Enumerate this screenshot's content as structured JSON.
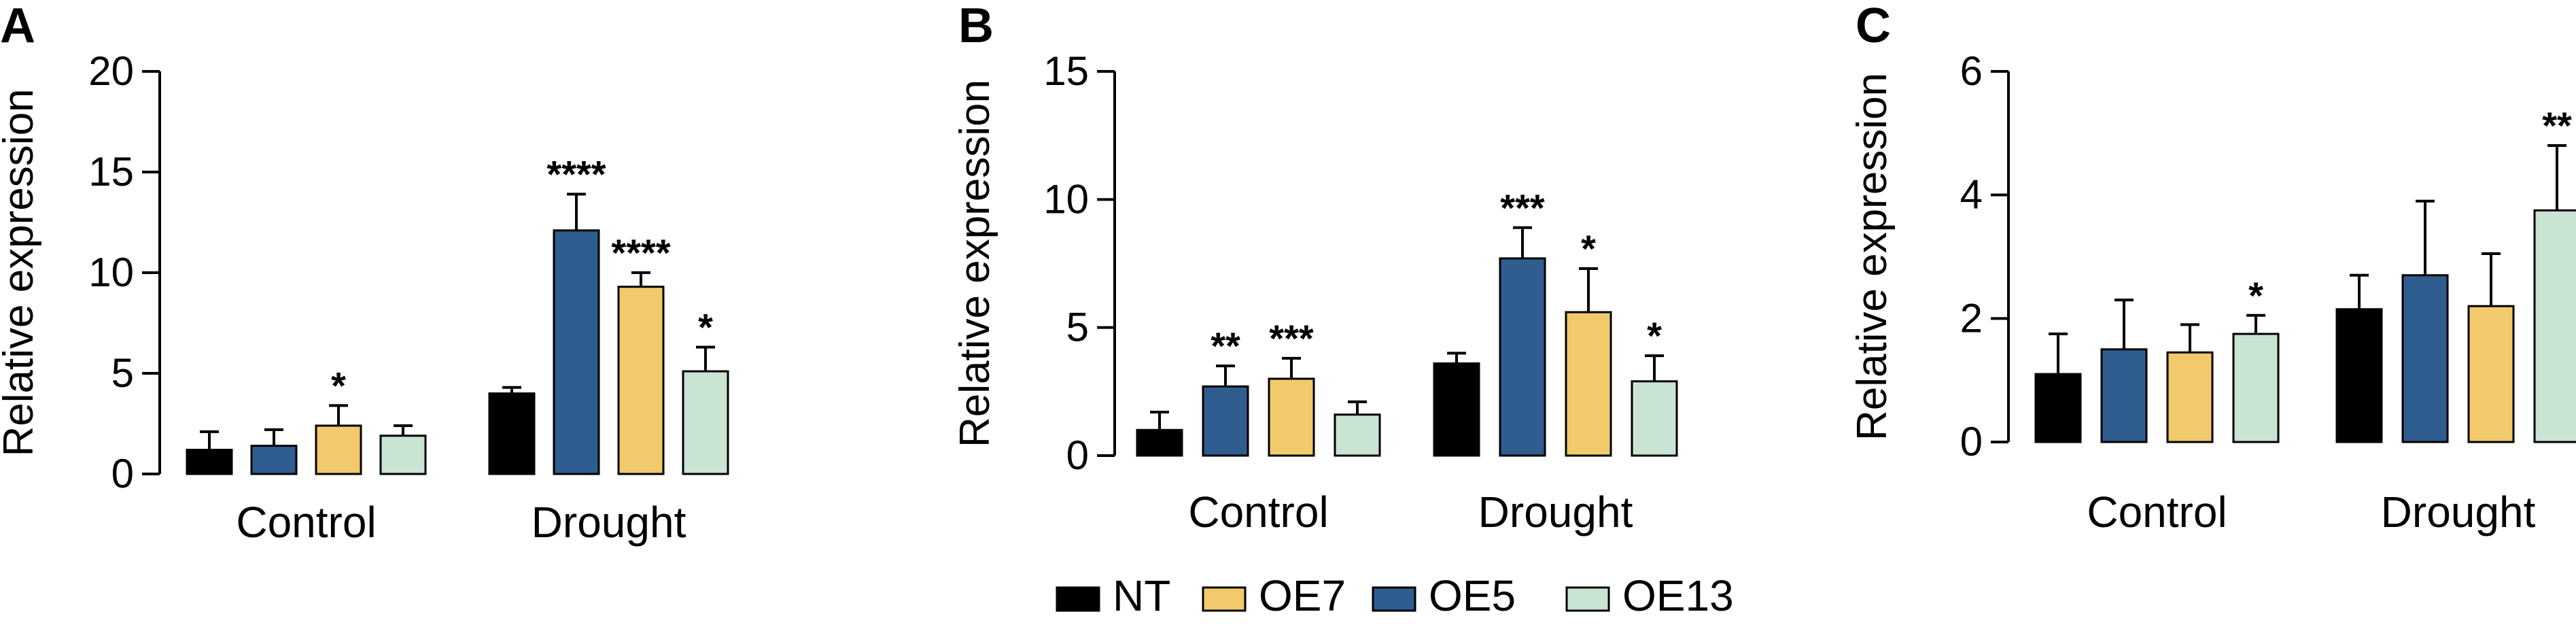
{
  "colors": {
    "NT": "#000000",
    "OE7": "#f2ca6c",
    "OE5": "#2f5d8f",
    "OE13": "#c9e4d2",
    "axis": "#000000"
  },
  "legend": {
    "items": [
      {
        "label": "NT",
        "color": "#000000"
      },
      {
        "label": "OE7",
        "color": "#f2ca6c"
      },
      {
        "label": "OE5",
        "color": "#2f5d8f"
      },
      {
        "label": "OE13",
        "color": "#c9e4d2"
      }
    ]
  },
  "chart_data": [
    {
      "panel": "A",
      "type": "bar",
      "ylabel": "Relative expression",
      "ylim": [
        0,
        20
      ],
      "yticks": [
        0,
        5,
        10,
        15,
        20
      ],
      "categories": [
        "Control",
        "Drought"
      ],
      "series_order": [
        "NT",
        "OE5",
        "OE7",
        "OE13"
      ],
      "series": [
        {
          "name": "NT",
          "values": [
            1.2,
            4.0
          ],
          "errors": [
            0.9,
            0.3
          ],
          "sig": [
            "",
            ""
          ]
        },
        {
          "name": "OE5",
          "values": [
            1.4,
            12.1
          ],
          "errors": [
            0.8,
            1.8
          ],
          "sig": [
            "",
            "****"
          ]
        },
        {
          "name": "OE7",
          "values": [
            2.4,
            9.3
          ],
          "errors": [
            1.0,
            0.7
          ],
          "sig": [
            "*",
            "****"
          ]
        },
        {
          "name": "OE13",
          "values": [
            1.9,
            5.1
          ],
          "errors": [
            0.5,
            1.2
          ],
          "sig": [
            "",
            "*"
          ]
        }
      ]
    },
    {
      "panel": "B",
      "type": "bar",
      "ylabel": "Relative expression",
      "ylim": [
        0,
        15
      ],
      "yticks": [
        0,
        5,
        10,
        15
      ],
      "categories": [
        "Control",
        "Drought"
      ],
      "series_order": [
        "NT",
        "OE5",
        "OE7",
        "OE13"
      ],
      "series": [
        {
          "name": "NT",
          "values": [
            1.0,
            3.6
          ],
          "errors": [
            0.7,
            0.4
          ],
          "sig": [
            "",
            ""
          ]
        },
        {
          "name": "OE5",
          "values": [
            2.7,
            7.7
          ],
          "errors": [
            0.8,
            1.2
          ],
          "sig": [
            "**",
            "***"
          ]
        },
        {
          "name": "OE7",
          "values": [
            3.0,
            5.6
          ],
          "errors": [
            0.8,
            1.7
          ],
          "sig": [
            "***",
            "*"
          ]
        },
        {
          "name": "OE13",
          "values": [
            1.6,
            2.9
          ],
          "errors": [
            0.5,
            1.0
          ],
          "sig": [
            "",
            "*"
          ]
        }
      ]
    },
    {
      "panel": "C",
      "type": "bar",
      "ylabel": "Relative expression",
      "ylim": [
        0,
        6
      ],
      "yticks": [
        0,
        2,
        4,
        6
      ],
      "categories": [
        "Control",
        "Drought"
      ],
      "series_order": [
        "NT",
        "OE5",
        "OE7",
        "OE13"
      ],
      "series": [
        {
          "name": "NT",
          "values": [
            1.1,
            2.15
          ],
          "errors": [
            0.65,
            0.55
          ],
          "sig": [
            "",
            ""
          ]
        },
        {
          "name": "OE5",
          "values": [
            1.5,
            2.7
          ],
          "errors": [
            0.8,
            1.2
          ],
          "sig": [
            "",
            ""
          ]
        },
        {
          "name": "OE7",
          "values": [
            1.45,
            2.2
          ],
          "errors": [
            0.45,
            0.85
          ],
          "sig": [
            "",
            ""
          ]
        },
        {
          "name": "OE13",
          "values": [
            1.75,
            3.75
          ],
          "errors": [
            0.3,
            1.05
          ],
          "sig": [
            "*",
            "**"
          ]
        }
      ]
    }
  ]
}
